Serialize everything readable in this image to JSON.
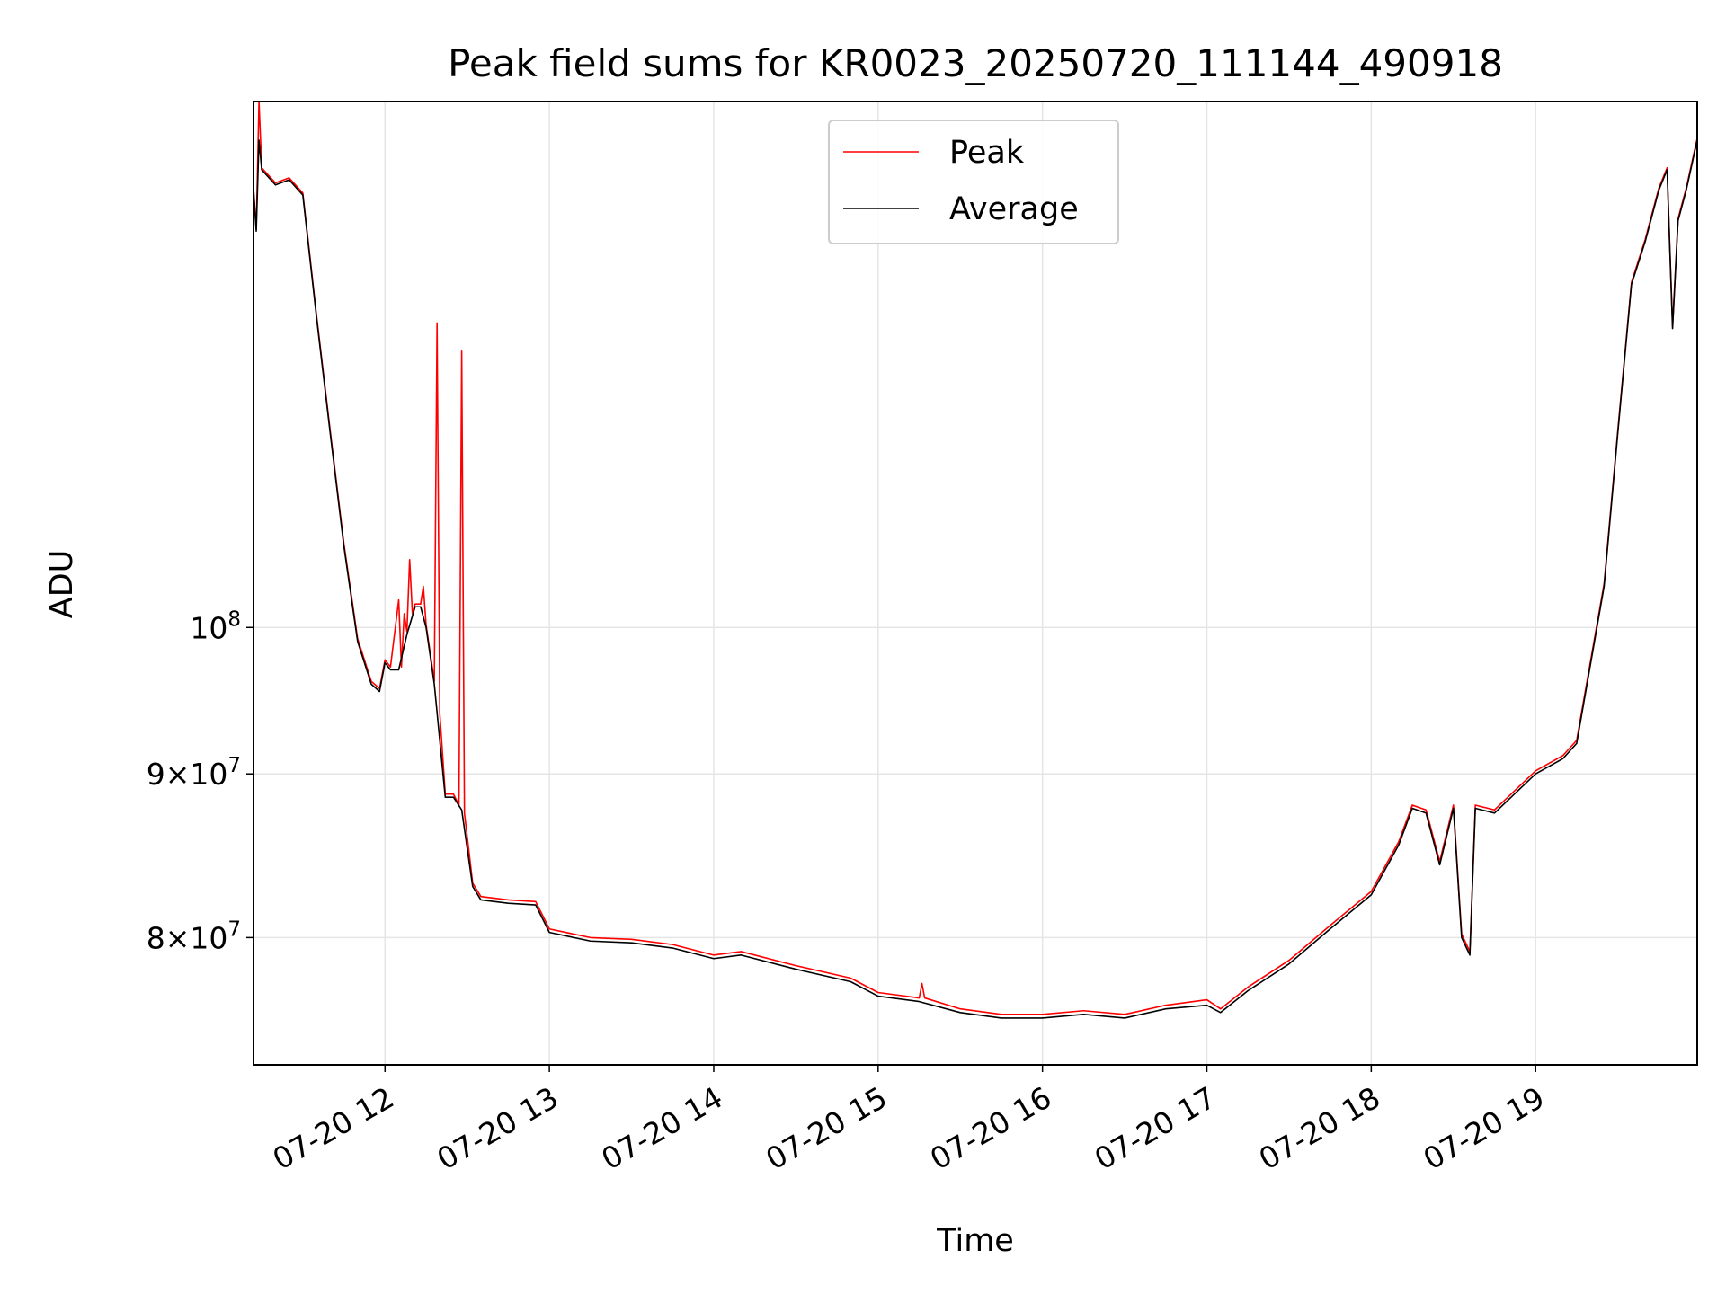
{
  "chart_data": {
    "type": "line",
    "title": "Peak field sums for KR0023_20250720_111144_490918",
    "xlabel": "Time",
    "ylabel": "ADU",
    "x_axis": "datetime",
    "xlim": [
      "2025-07-20 11:12",
      "2025-07-20 19:59"
    ],
    "x_ticks": [
      {
        "value": "2025-07-20 12:00",
        "label": "07-20 12"
      },
      {
        "value": "2025-07-20 13:00",
        "label": "07-20 13"
      },
      {
        "value": "2025-07-20 14:00",
        "label": "07-20 14"
      },
      {
        "value": "2025-07-20 15:00",
        "label": "07-20 15"
      },
      {
        "value": "2025-07-20 16:00",
        "label": "07-20 16"
      },
      {
        "value": "2025-07-20 17:00",
        "label": "07-20 17"
      },
      {
        "value": "2025-07-20 18:00",
        "label": "07-20 18"
      },
      {
        "value": "2025-07-20 19:00",
        "label": "07-20 19"
      }
    ],
    "y_scale": "log",
    "ylim": [
      73000000,
      146000000
    ],
    "y_ticks": [
      {
        "value": 80000000,
        "mantissa": "8",
        "base": "10",
        "exp": "7"
      },
      {
        "value": 90000000,
        "mantissa": "9",
        "base": "10",
        "exp": "7"
      },
      {
        "value": 100000000,
        "mantissa": "",
        "base": "10",
        "exp": "8"
      }
    ],
    "grid": true,
    "legend_position": "upper center",
    "series": [
      {
        "name": "Average",
        "color": "#000000",
        "points": [
          [
            "11:12",
            137000000
          ],
          [
            "11:13",
            133000000
          ],
          [
            "11:14",
            142000000
          ],
          [
            "11:15",
            139000000
          ],
          [
            "11:20",
            137500000
          ],
          [
            "11:25",
            138000000
          ],
          [
            "11:30",
            136500000
          ],
          [
            "11:35",
            125000000
          ],
          [
            "11:40",
            115000000
          ],
          [
            "11:45",
            106000000
          ],
          [
            "11:50",
            99000000
          ],
          [
            "11:55",
            96000000
          ],
          [
            "11:58",
            95500000
          ],
          [
            "12:00",
            97500000
          ],
          [
            "12:02",
            97000000
          ],
          [
            "12:05",
            97000000
          ],
          [
            "12:08",
            99500000
          ],
          [
            "12:11",
            101500000
          ],
          [
            "12:13",
            101500000
          ],
          [
            "12:15",
            100000000
          ],
          [
            "12:18",
            96000000
          ],
          [
            "12:22",
            88500000
          ],
          [
            "12:25",
            88500000
          ],
          [
            "12:28",
            87700000
          ],
          [
            "12:32",
            83000000
          ],
          [
            "12:35",
            82200000
          ],
          [
            "12:45",
            82000000
          ],
          [
            "12:55",
            81900000
          ],
          [
            "13:00",
            80300000
          ],
          [
            "13:15",
            79800000
          ],
          [
            "13:30",
            79700000
          ],
          [
            "13:45",
            79400000
          ],
          [
            "14:00",
            78800000
          ],
          [
            "14:10",
            79000000
          ],
          [
            "14:30",
            78200000
          ],
          [
            "14:50",
            77500000
          ],
          [
            "15:00",
            76700000
          ],
          [
            "15:15",
            76400000
          ],
          [
            "15:30",
            75800000
          ],
          [
            "15:45",
            75500000
          ],
          [
            "16:00",
            75500000
          ],
          [
            "16:15",
            75700000
          ],
          [
            "16:30",
            75500000
          ],
          [
            "16:45",
            76000000
          ],
          [
            "17:00",
            76200000
          ],
          [
            "17:05",
            75800000
          ],
          [
            "17:15",
            77000000
          ],
          [
            "17:30",
            78500000
          ],
          [
            "17:45",
            80500000
          ],
          [
            "18:00",
            82500000
          ],
          [
            "18:10",
            85500000
          ],
          [
            "18:15",
            87800000
          ],
          [
            "18:20",
            87500000
          ],
          [
            "18:25",
            84300000
          ],
          [
            "18:30",
            87800000
          ],
          [
            "18:33",
            80000000
          ],
          [
            "18:36",
            79000000
          ],
          [
            "18:38",
            87800000
          ],
          [
            "18:45",
            87500000
          ],
          [
            "19:00",
            90000000
          ],
          [
            "19:10",
            91000000
          ],
          [
            "19:15",
            92000000
          ],
          [
            "19:25",
            103000000
          ],
          [
            "19:30",
            115000000
          ],
          [
            "19:35",
            128000000
          ],
          [
            "19:40",
            132000000
          ],
          [
            "19:45",
            137000000
          ],
          [
            "19:48",
            139000000
          ],
          [
            "19:50",
            124000000
          ],
          [
            "19:52",
            134000000
          ],
          [
            "19:55",
            137000000
          ],
          [
            "19:59",
            142000000
          ]
        ]
      },
      {
        "name": "Peak",
        "color": "#ff0000",
        "points": [
          [
            "11:12",
            137200000
          ],
          [
            "11:13",
            133200000
          ],
          [
            "11:14",
            146000000
          ],
          [
            "11:15",
            139200000
          ],
          [
            "11:20",
            137700000
          ],
          [
            "11:25",
            138200000
          ],
          [
            "11:30",
            136700000
          ],
          [
            "11:35",
            125200000
          ],
          [
            "11:40",
            115200000
          ],
          [
            "11:45",
            106200000
          ],
          [
            "11:50",
            99200000
          ],
          [
            "11:55",
            96200000
          ],
          [
            "11:58",
            95700000
          ],
          [
            "12:00",
            97700000
          ],
          [
            "12:02",
            97200000
          ],
          [
            "12:05",
            102000000
          ],
          [
            "12:06",
            97200000
          ],
          [
            "12:07",
            101000000
          ],
          [
            "12:08",
            99700000
          ],
          [
            "12:09",
            105000000
          ],
          [
            "12:10",
            101000000
          ],
          [
            "12:11",
            101700000
          ],
          [
            "12:13",
            101700000
          ],
          [
            "12:14",
            103000000
          ],
          [
            "12:15",
            100200000
          ],
          [
            "12:18",
            96200000
          ],
          [
            "12:19",
            124500000
          ],
          [
            "12:20",
            94000000
          ],
          [
            "12:22",
            88700000
          ],
          [
            "12:25",
            88700000
          ],
          [
            "12:27",
            88000000
          ],
          [
            "12:28",
            122000000
          ],
          [
            "12:29",
            87500000
          ],
          [
            "12:32",
            83200000
          ],
          [
            "12:35",
            82400000
          ],
          [
            "12:45",
            82200000
          ],
          [
            "12:55",
            82100000
          ],
          [
            "13:00",
            80500000
          ],
          [
            "13:15",
            80000000
          ],
          [
            "13:30",
            79900000
          ],
          [
            "13:45",
            79600000
          ],
          [
            "14:00",
            79000000
          ],
          [
            "14:10",
            79200000
          ],
          [
            "14:30",
            78400000
          ],
          [
            "14:50",
            77700000
          ],
          [
            "15:00",
            76900000
          ],
          [
            "15:15",
            76600000
          ],
          [
            "15:16",
            77400000
          ],
          [
            "15:17",
            76600000
          ],
          [
            "15:30",
            76000000
          ],
          [
            "15:45",
            75700000
          ],
          [
            "16:00",
            75700000
          ],
          [
            "16:15",
            75900000
          ],
          [
            "16:30",
            75700000
          ],
          [
            "16:45",
            76200000
          ],
          [
            "17:00",
            76500000
          ],
          [
            "17:05",
            76000000
          ],
          [
            "17:15",
            77200000
          ],
          [
            "17:30",
            78700000
          ],
          [
            "17:45",
            80700000
          ],
          [
            "18:00",
            82700000
          ],
          [
            "18:10",
            85700000
          ],
          [
            "18:15",
            88000000
          ],
          [
            "18:20",
            87700000
          ],
          [
            "18:25",
            84500000
          ],
          [
            "18:30",
            88000000
          ],
          [
            "18:33",
            80200000
          ],
          [
            "18:36",
            79200000
          ],
          [
            "18:38",
            88000000
          ],
          [
            "18:45",
            87700000
          ],
          [
            "19:00",
            90200000
          ],
          [
            "19:10",
            91200000
          ],
          [
            "19:15",
            92200000
          ],
          [
            "19:25",
            103200000
          ],
          [
            "19:30",
            115200000
          ],
          [
            "19:35",
            128200000
          ],
          [
            "19:40",
            132200000
          ],
          [
            "19:45",
            137200000
          ],
          [
            "19:48",
            139200000
          ],
          [
            "19:50",
            124200000
          ],
          [
            "19:52",
            134200000
          ],
          [
            "19:55",
            137200000
          ],
          [
            "19:59",
            142200000
          ]
        ]
      }
    ],
    "legend": [
      {
        "label": "Peak",
        "color": "#ff0000"
      },
      {
        "label": "Average",
        "color": "#000000"
      }
    ]
  }
}
